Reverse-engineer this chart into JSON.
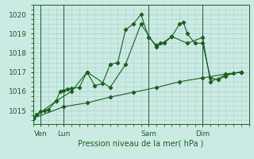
{
  "xlabel": "Pression niveau de la mer( hPa )",
  "bg_color": "#cceae4",
  "grid_color": "#aad4cc",
  "line_color": "#1a6020",
  "ylim": [
    1014.3,
    1020.5
  ],
  "yticks": [
    1015,
    1016,
    1017,
    1018,
    1019,
    1020
  ],
  "xlim": [
    0,
    28
  ],
  "day_positions": [
    1,
    4,
    15,
    22
  ],
  "day_labels": [
    "Ven",
    "Lun",
    "Sam",
    "Dim"
  ],
  "vline_positions": [
    1,
    4,
    15,
    22
  ],
  "series": [
    {
      "x": [
        0,
        0.5,
        1.0,
        1.5,
        2.0,
        3.0,
        3.5,
        4.0,
        4.5,
        5.0,
        6.0,
        7.0,
        8.0,
        9.0,
        10.0,
        11.0,
        12.0,
        13.0,
        14.0,
        15.0,
        16.0,
        16.5,
        17.0,
        18.0,
        19.0,
        19.5,
        20.0,
        21.0,
        22.0,
        23.0,
        24.0,
        25.0,
        26.0,
        27.0
      ],
      "y": [
        1014.6,
        1014.8,
        1014.95,
        1015.0,
        1015.05,
        1015.5,
        1016.0,
        1016.05,
        1016.1,
        1016.15,
        1016.2,
        1017.0,
        1016.3,
        1016.4,
        1017.4,
        1017.5,
        1019.2,
        1019.5,
        1020.0,
        1018.8,
        1018.4,
        1018.5,
        1018.5,
        1018.85,
        1019.5,
        1019.6,
        1019.0,
        1018.5,
        1018.5,
        1016.7,
        1016.6,
        1016.8,
        1016.95,
        1017.0
      ]
    },
    {
      "x": [
        0,
        3.0,
        5.0,
        7.0,
        10.0,
        12.0,
        14.0,
        16.0,
        18.0,
        20.0,
        22.0,
        23.0,
        25.0,
        27.0
      ],
      "y": [
        1014.6,
        1015.5,
        1016.0,
        1017.0,
        1016.2,
        1017.4,
        1019.5,
        1018.3,
        1018.85,
        1018.5,
        1018.8,
        1016.5,
        1016.85,
        1017.0
      ]
    },
    {
      "x": [
        0,
        4,
        7,
        10,
        13,
        16,
        19,
        22,
        25,
        27
      ],
      "y": [
        1014.6,
        1015.2,
        1015.4,
        1015.7,
        1015.95,
        1016.2,
        1016.5,
        1016.7,
        1016.9,
        1017.0
      ]
    }
  ]
}
